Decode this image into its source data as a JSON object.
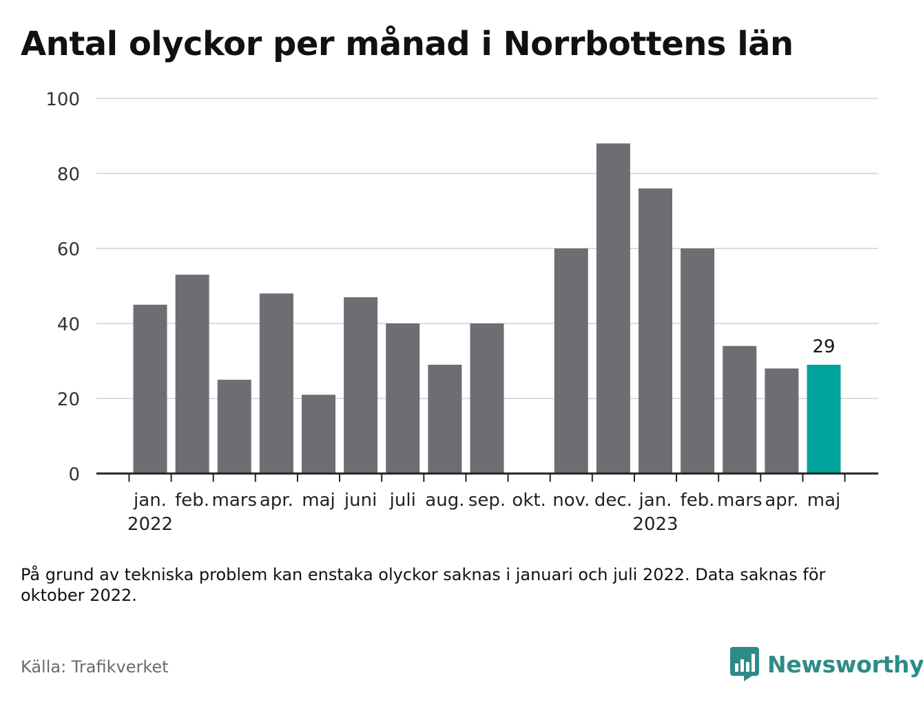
{
  "title": "Antal olyckor per månad i Norrbottens län",
  "note": "På grund av tekniska problem kan enstaka olyckor saknas i januari och juli 2022. Data saknas för oktober 2022.",
  "source": "Källa: Trafikverket",
  "brand": {
    "name": "Newsworthy",
    "icon": "newsworthy-logo-icon"
  },
  "colors": {
    "bar": "#6e6d73",
    "highlight": "#00a39a",
    "grid": "#dcdcdc",
    "axis": "#222222",
    "brand": "#2e8b87"
  },
  "chart_data": {
    "type": "bar",
    "categories": [
      "jan.",
      "feb.",
      "mars",
      "apr.",
      "maj",
      "juni",
      "juli",
      "aug.",
      "sep.",
      "okt.",
      "nov.",
      "dec.",
      "jan.",
      "feb.",
      "mars",
      "apr.",
      "maj"
    ],
    "year_labels": [
      {
        "index": 0,
        "label": "2022"
      },
      {
        "index": 12,
        "label": "2023"
      }
    ],
    "values": [
      45,
      53,
      25,
      48,
      21,
      47,
      40,
      29,
      40,
      null,
      60,
      88,
      76,
      60,
      34,
      28,
      29
    ],
    "highlight_index": 16,
    "highlight_label": "29",
    "ylim": [
      0,
      100
    ],
    "yticks": [
      0,
      20,
      40,
      60,
      80,
      100
    ],
    "grid": true,
    "xlabel": "",
    "ylabel": ""
  }
}
